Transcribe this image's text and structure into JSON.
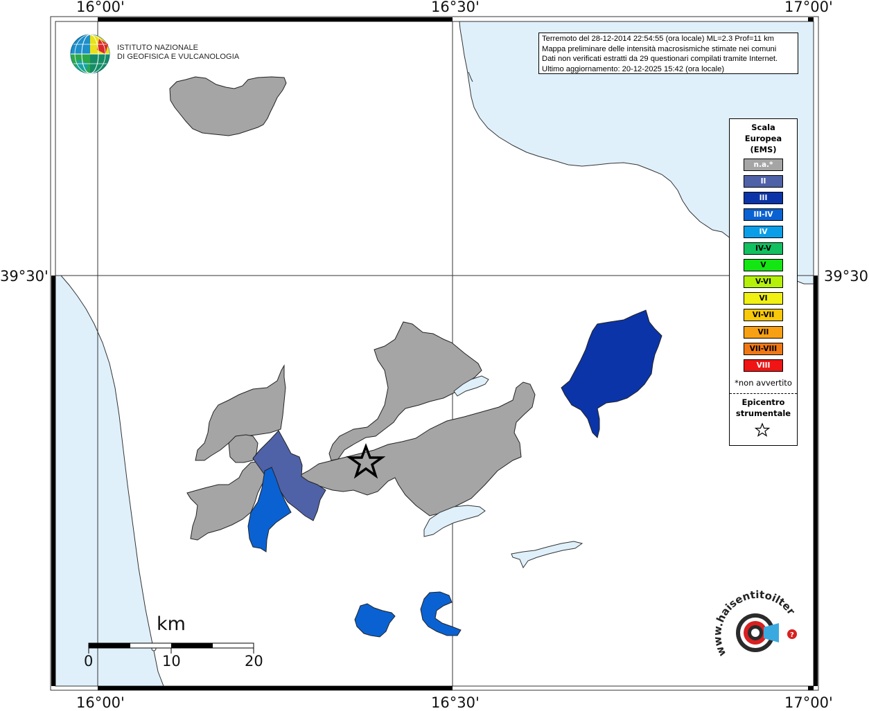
{
  "map": {
    "coords": {
      "top": [
        "16°00'",
        "16°30'",
        "17°00'"
      ],
      "bottom": [
        "16°00'",
        "16°30'",
        "17°00'"
      ],
      "left": [
        "39°30'"
      ],
      "right": [
        "39°30'"
      ]
    }
  },
  "header": {
    "institute_line1": "ISTITUTO NAZIONALE",
    "institute_line2": "DI GEOFISICA E VULCANOLOGIA"
  },
  "info": {
    "line1": "Terremoto del 28-12-2014 22:54:55 (ora locale) ML=2.3 Prof=11 km",
    "line2": "Mappa preliminare delle intensità macrosismiche stimate nei comuni",
    "line3": "Dati non verificati estratti da 29 questionari compilati tramite Internet.",
    "line4": "Ultimo aggiornamento: 20-12-2025 15:42 (ora locale)"
  },
  "legend": {
    "title_line1": "Scala",
    "title_line2": "Europea",
    "title_line3": "(EMS)",
    "items": [
      {
        "label": "n.a.*",
        "color": "#a5a5a5",
        "text_color": "#ffffff"
      },
      {
        "label": "II",
        "color": "#4f62a8",
        "text_color": "#ffffff"
      },
      {
        "label": "III",
        "color": "#0a34a8",
        "text_color": "#ffffff"
      },
      {
        "label": "III-IV",
        "color": "#0a62d2",
        "text_color": "#ffffff"
      },
      {
        "label": "IV",
        "color": "#0a9ee8",
        "text_color": "#ffffff"
      },
      {
        "label": "IV-V",
        "color": "#12c060",
        "text_color": "#000000"
      },
      {
        "label": "V",
        "color": "#14e614",
        "text_color": "#000000"
      },
      {
        "label": "V-VI",
        "color": "#b4f00a",
        "text_color": "#000000"
      },
      {
        "label": "VI",
        "color": "#f0f014",
        "text_color": "#000000"
      },
      {
        "label": "VI-VII",
        "color": "#f8c80a",
        "text_color": "#000000"
      },
      {
        "label": "VII",
        "color": "#f8a014",
        "text_color": "#000000"
      },
      {
        "label": "VII-VIII",
        "color": "#f07814",
        "text_color": "#000000"
      },
      {
        "label": "VIII",
        "color": "#f01414",
        "text_color": "#ffffff"
      }
    ],
    "note": "*non avvertito",
    "epicenter_line1": "Epicentro",
    "epicenter_line2": "strumentale"
  },
  "scale": {
    "unit": "km",
    "ticks": [
      "0",
      "10",
      "20"
    ]
  },
  "colors": {
    "sea": "#dff0fb",
    "na": "#a5a5a5",
    "II": "#4f62a8",
    "III": "#0a34a8",
    "III_IV": "#0a62d2",
    "lake": "#dff0fb"
  },
  "website_logo": {
    "text": "www.haisentitoilterremoto.it"
  }
}
